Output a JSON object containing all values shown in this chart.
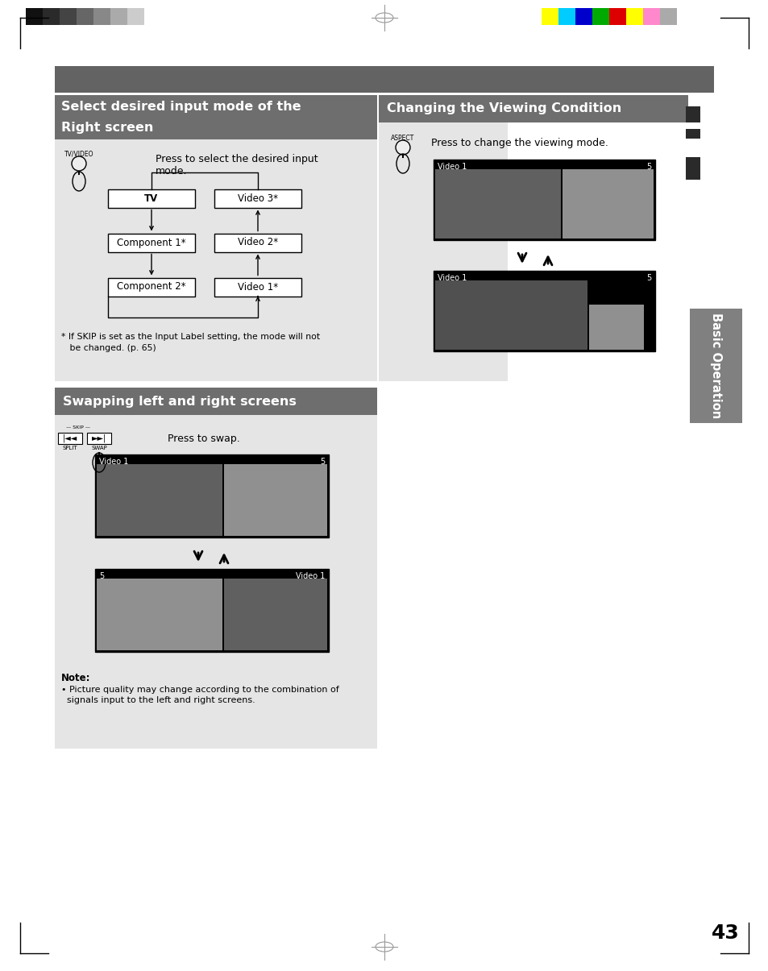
{
  "page_bg": "#ffffff",
  "dark_bar_color": "#636363",
  "section_header_bg": "#6e6e6e",
  "light_section_bg": "#e5e5e5",
  "right_tab_bg": "#808080",
  "right_tab_text": "Basic Operation",
  "page_number": "43",
  "color_bar_colors": [
    "#ffff00",
    "#00ccff",
    "#0000cc",
    "#00aa00",
    "#dd0000",
    "#ffff00",
    "#ff88cc",
    "#aaaaaa"
  ],
  "gray_bar_shades": [
    "#111111",
    "#2a2a2a",
    "#444444",
    "#666666",
    "#888888",
    "#aaaaaa",
    "#cccccc",
    "#ffffff"
  ],
  "section1_title_line1": "Select desired input mode of the",
  "section1_title_line2": "Right screen",
  "section1_body": "Press to select the desired input\nmode.",
  "section1_footnote_line1": "* If SKIP is set as the Input Label setting, the mode will not",
  "section1_footnote_line2": "   be changed. (p. 65)",
  "section2_title": "Swapping left and right screens",
  "section2_body": "Press to swap.",
  "section3_title": "Changing the Viewing Condition",
  "section3_body": "Press to change the viewing mode.",
  "note_title": "Note:",
  "note_body1": "• Picture quality may change according to the combination of",
  "note_body2": "  signals input to the left and right screens.",
  "aspect_label": "ASPECT",
  "tv_video_label": "TV/VIDEO",
  "split_label": "SPLIT",
  "swap_label": "SWAP"
}
